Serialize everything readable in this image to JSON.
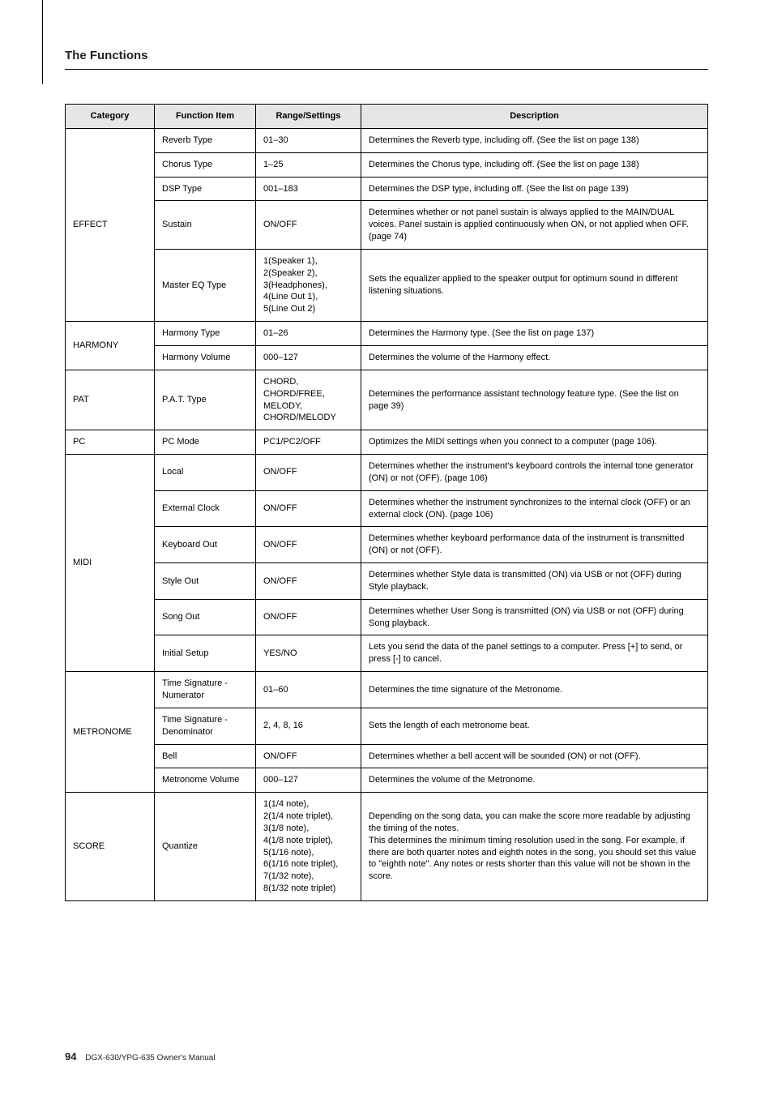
{
  "section_title": "The Functions",
  "footer_page": "94",
  "footer_text": "DGX-630/YPG-635  Owner's Manual",
  "headers": [
    "Category",
    "Function Item",
    "Range/Settings",
    "Description"
  ],
  "groups": [
    {
      "category": "EFFECT",
      "rows": [
        {
          "item": "Reverb Type",
          "range": "01–30",
          "desc": "Determines the Reverb type, including off. (See the list on page 138)"
        },
        {
          "item": "Chorus Type",
          "range": "1–25",
          "desc": "Determines the Chorus type, including off. (See the list on page 138)"
        },
        {
          "item": "DSP Type",
          "range": "001–183",
          "desc": "Determines the DSP type, including off. (See the list on page 139)"
        },
        {
          "item": "Sustain",
          "range": "ON/OFF",
          "desc": "Determines whether or not panel sustain is always applied to the MAIN/DUAL voices. Panel sustain is applied continuously when ON, or not applied when OFF. (page 74)"
        },
        {
          "item": "Master EQ Type",
          "range": "1(Speaker 1),\n2(Speaker 2),\n3(Headphones),\n4(Line Out 1),\n5(Line Out 2)",
          "desc": "Sets the equalizer applied to the speaker output for optimum sound in different listening situations."
        }
      ]
    },
    {
      "category": "HARMONY",
      "rows": [
        {
          "item": "Harmony Type",
          "range": "01–26",
          "desc": "Determines the Harmony type. (See the list on page 137)"
        },
        {
          "item": "Harmony Volume",
          "range": "000–127",
          "desc": "Determines the volume of the Harmony effect."
        }
      ]
    },
    {
      "category": "PAT",
      "rows": [
        {
          "item": "P.A.T. Type",
          "range": "CHORD,\nCHORD/FREE,\nMELODY,\nCHORD/MELODY",
          "desc": "Determines the performance assistant technology feature type. (See the list on page 39)"
        }
      ]
    },
    {
      "category": "PC",
      "rows": [
        {
          "item": "PC Mode",
          "range": "PC1/PC2/OFF",
          "desc": "Optimizes the MIDI settings when you connect to a computer (page 106)."
        }
      ]
    },
    {
      "category": "MIDI",
      "rows": [
        {
          "item": "Local",
          "range": "ON/OFF",
          "desc": "Determines whether the instrument's keyboard controls the internal tone generator (ON) or not (OFF). (page 106)"
        },
        {
          "item": "External Clock",
          "range": "ON/OFF",
          "desc": "Determines whether the instrument synchronizes to the internal clock (OFF) or an external clock (ON). (page 106)"
        },
        {
          "item": "Keyboard Out",
          "range": "ON/OFF",
          "desc": "Determines whether keyboard performance data of the instrument is transmitted (ON) or not (OFF)."
        },
        {
          "item": "Style Out",
          "range": "ON/OFF",
          "desc": "Determines whether Style data is transmitted (ON) via USB or not (OFF) during Style playback."
        },
        {
          "item": "Song Out",
          "range": "ON/OFF",
          "desc": "Determines whether User Song is transmitted (ON) via USB or not (OFF) during Song playback."
        },
        {
          "item": "Initial Setup",
          "range": "YES/NO",
          "desc": "Lets you send the data of the panel settings to a computer. Press [+] to send, or press [-] to cancel."
        }
      ]
    },
    {
      "category": "METRONOME",
      "rows": [
        {
          "item": "Time Signature - Numerator",
          "range": "01–60",
          "desc": "Determines the time signature of the Metronome."
        },
        {
          "item": "Time Signature - Denominator",
          "range": "2, 4, 8, 16",
          "desc": "Sets the length of each metronome beat."
        },
        {
          "item": "Bell",
          "range": "ON/OFF",
          "desc": "Determines whether a bell accent will be sounded (ON) or not (OFF)."
        },
        {
          "item": "Metronome Volume",
          "range": "000–127",
          "desc": "Determines the volume of the Metronome."
        }
      ]
    },
    {
      "category": "SCORE",
      "rows": [
        {
          "item": "Quantize",
          "range": "1(1/4 note),\n2(1/4 note triplet),\n3(1/8 note),\n4(1/8 note triplet),\n5(1/16 note),\n6(1/16 note triplet),\n7(1/32 note),\n8(1/32 note triplet)",
          "desc": "Depending on the song data, you can make the score more readable by adjusting the timing of the notes.\nThis determines the minimum timing resolution used in the song. For example, if there are both quarter notes and eighth notes in the song, you should set this value to \"eighth note\". Any notes or rests shorter than this value will not be shown in the score."
        }
      ]
    }
  ]
}
